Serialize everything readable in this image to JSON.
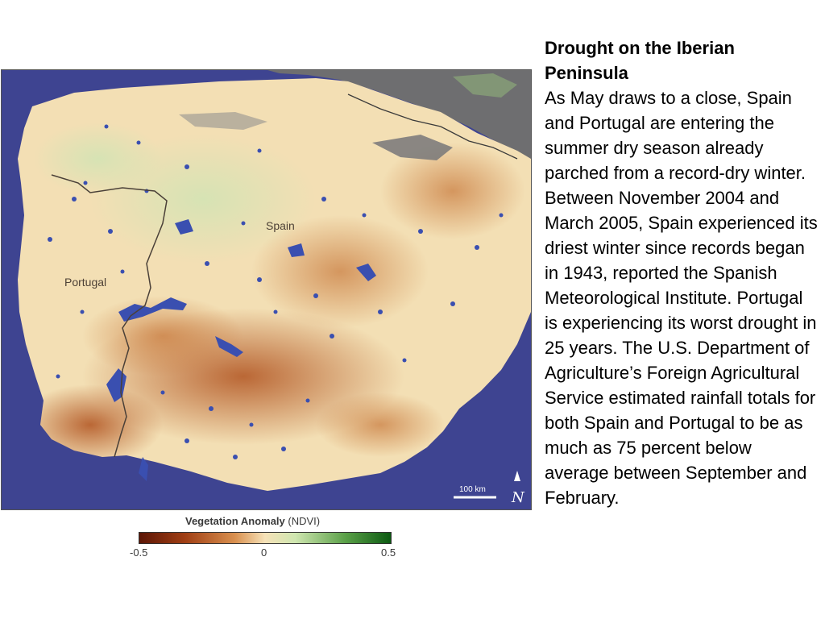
{
  "map": {
    "labels": {
      "spain": "Spain",
      "portugal": "Portugal"
    },
    "scale_bar": "100 km",
    "north_symbol": "N",
    "colors": {
      "ocean": "#3e4491",
      "no_data": "#6e6e70",
      "dry": "#a54a1e",
      "neutral": "#f4e4bc",
      "wet": "#1a6a1e",
      "water": "#3a4fb0"
    },
    "icons": {
      "north": "north-arrow-icon"
    }
  },
  "legend": {
    "title_bold": "Vegetation Anomaly",
    "title_suffix": " (NDVI)",
    "ticks": [
      "-0.5",
      "0",
      "0.5"
    ]
  },
  "article": {
    "title": "Drought on the Iberian Peninsula",
    "body": "As May draws to a close, Spain and Portugal are entering the summer dry season already parched from a record-dry winter. Between November 2004 and March 2005, Spain experienced its driest winter since records began in 1943, reported the Spanish Meteorological Institute. Portugal is experiencing its worst drought in 25 years. The U.S. Department of Agriculture’s Foreign Agricultural Service estimated rainfall totals for both Spain and Portugal to be as much as 75 percent below average between September and February."
  }
}
